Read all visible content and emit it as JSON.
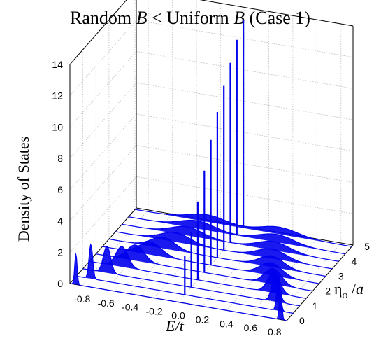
{
  "chart_data": {
    "type": "area",
    "title_parts": [
      "Random ",
      "B",
      " < Uniform ",
      "B",
      " (Case 1)"
    ],
    "title": "Random B < Uniform B (Case 1)",
    "zlabel": "Density of States",
    "xlabel": "E/t",
    "ylabel_parts": [
      "η",
      "ϕ",
      " /",
      "a"
    ],
    "ylabel": "ηϕ /a",
    "xlim": [
      -0.9,
      0.9
    ],
    "ylim": [
      0,
      5.1
    ],
    "zlim": [
      0,
      14
    ],
    "x_ticks": [
      "-0.8",
      "-0.6",
      "-0.4",
      "-0.2",
      "0.0",
      "0.2",
      "0.4",
      "0.6",
      "0.8"
    ],
    "x_tick_values": [
      -0.8,
      -0.6,
      -0.4,
      -0.2,
      0.0,
      0.2,
      0.4,
      0.6,
      0.8
    ],
    "y_ticks": [
      "0",
      "1",
      "2",
      "3",
      "4",
      "5"
    ],
    "y_tick_values": [
      0,
      1,
      2,
      3,
      4,
      5
    ],
    "z_ticks": [
      "0",
      "2",
      "4",
      "6",
      "8",
      "10",
      "12",
      "14"
    ],
    "z_tick_values": [
      0,
      2,
      4,
      6,
      8,
      10,
      12,
      14
    ],
    "grid": true,
    "color": "#0000ee",
    "traces": [
      {
        "eta": 0.0,
        "bands": [
          {
            "center": -0.85,
            "width": 0.01,
            "height": 2.0
          },
          {
            "center": 0.85,
            "width": 0.01,
            "height": 2.0
          }
        ],
        "spikes": []
      },
      {
        "eta": 0.5,
        "bands": [
          {
            "center": -0.78,
            "width": 0.015,
            "height": 2.2
          },
          {
            "center": 0.78,
            "width": 0.015,
            "height": 2.2
          }
        ],
        "spikes": [
          {
            "position": 0.0,
            "height": 2.5
          }
        ]
      },
      {
        "eta": 1.0,
        "bands": [
          {
            "center": -0.7,
            "width": 0.03,
            "height": 1.7
          },
          {
            "center": 0.7,
            "width": 0.03,
            "height": 1.7
          }
        ],
        "spikes": [
          {
            "position": 0.0,
            "height": 3.5
          }
        ]
      },
      {
        "eta": 1.5,
        "bands": [
          {
            "center": -0.63,
            "width": 0.05,
            "height": 1.3
          },
          {
            "center": 0.63,
            "width": 0.05,
            "height": 1.3
          }
        ],
        "spikes": [
          {
            "position": 0.0,
            "height": 5.0
          }
        ]
      },
      {
        "eta": 2.0,
        "bands": [
          {
            "center": -0.57,
            "width": 0.07,
            "height": 1.0
          },
          {
            "center": 0.57,
            "width": 0.07,
            "height": 1.0
          }
        ],
        "spikes": [
          {
            "position": 0.0,
            "height": 6.5
          }
        ]
      },
      {
        "eta": 2.5,
        "bands": [
          {
            "center": -0.5,
            "width": 0.09,
            "height": 0.8
          },
          {
            "center": 0.5,
            "width": 0.09,
            "height": 0.8
          }
        ],
        "spikes": [
          {
            "position": 0.0,
            "height": 8.0
          }
        ]
      },
      {
        "eta": 3.0,
        "bands": [
          {
            "center": -0.45,
            "width": 0.1,
            "height": 0.7
          },
          {
            "center": 0.45,
            "width": 0.1,
            "height": 0.7
          }
        ],
        "spikes": [
          {
            "position": 0.0,
            "height": 9.3
          }
        ]
      },
      {
        "eta": 3.5,
        "bands": [
          {
            "center": -0.4,
            "width": 0.12,
            "height": 0.6
          },
          {
            "center": 0.4,
            "width": 0.12,
            "height": 0.6
          }
        ],
        "spikes": [
          {
            "position": 0.0,
            "height": 10.5
          }
        ]
      },
      {
        "eta": 4.0,
        "bands": [
          {
            "center": -0.36,
            "width": 0.13,
            "height": 0.55
          },
          {
            "center": 0.36,
            "width": 0.13,
            "height": 0.55
          }
        ],
        "spikes": [
          {
            "position": 0.0,
            "height": 11.5
          }
        ]
      },
      {
        "eta": 4.5,
        "bands": [
          {
            "center": -0.33,
            "width": 0.14,
            "height": 0.5
          },
          {
            "center": 0.33,
            "width": 0.14,
            "height": 0.5
          }
        ],
        "spikes": [
          {
            "position": 0.0,
            "height": 12.5
          }
        ]
      },
      {
        "eta": 5.0,
        "bands": [
          {
            "center": -0.3,
            "width": 0.15,
            "height": 0.45
          },
          {
            "center": 0.3,
            "width": 0.15,
            "height": 0.45
          }
        ],
        "spikes": [
          {
            "position": 0.0,
            "height": 13.3
          }
        ]
      }
    ]
  }
}
